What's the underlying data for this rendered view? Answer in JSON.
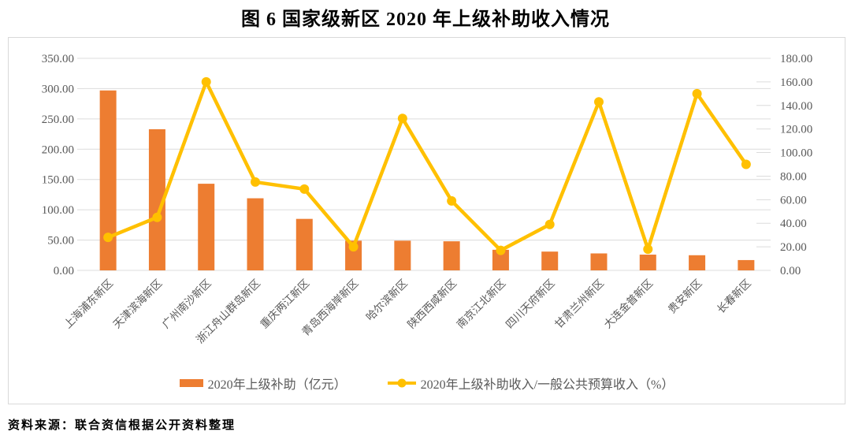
{
  "title": "图 6  国家级新区 2020 年上级补助收入情况",
  "source_note": "资料来源：联合资信根据公开资料整理",
  "chart_data": {
    "type": "combo-bar-line",
    "categories": [
      "上海浦东新区",
      "天津滨海新区",
      "广州南沙新区",
      "浙江舟山群岛新区",
      "重庆两江新区",
      "青岛西海岸新区",
      "哈尔滨新区",
      "陕西西咸新区",
      "南京江北新区",
      "四川天府新区",
      "甘肃兰州新区",
      "大连金普新区",
      "贵安新区",
      "长春新区"
    ],
    "series": [
      {
        "name": "2020年上级补助（亿元）",
        "type": "bar",
        "axis": "left",
        "color": "#ED7D31",
        "values": [
          297,
          233,
          143,
          119,
          85,
          49,
          49,
          48,
          34,
          31,
          28,
          26,
          25,
          17
        ]
      },
      {
        "name": "2020年上级补助收入/一般公共预算收入（%）",
        "type": "line",
        "axis": "right",
        "color": "#FFC000",
        "values": [
          28,
          45,
          160,
          75,
          69,
          20,
          129,
          59,
          17,
          39,
          143,
          18,
          150,
          90
        ]
      }
    ],
    "left_axis": {
      "min": 0,
      "max": 350,
      "step": 50,
      "tick_format": "0.00"
    },
    "right_axis": {
      "min": 0,
      "max": 180,
      "step": 20,
      "tick_format": "0.00"
    },
    "grid": true,
    "gridline_color": "#dcdcdc",
    "axis_label_color": "#595959",
    "legend_position": "bottom"
  }
}
